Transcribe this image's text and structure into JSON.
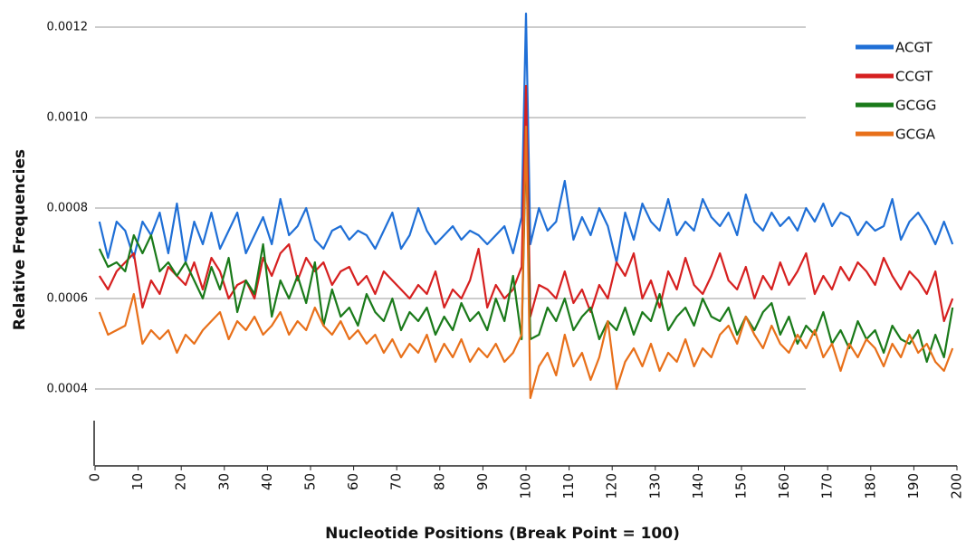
{
  "chart_data": {
    "type": "line",
    "x_label": "Nucleotide Positions (Break Point = 100)",
    "y_label": "Relative Frequencies",
    "xlim": [
      0,
      200
    ],
    "ylim": [
      0.00023,
      0.00124
    ],
    "xticks": [
      0,
      10,
      20,
      30,
      40,
      50,
      60,
      70,
      80,
      90,
      100,
      110,
      120,
      130,
      140,
      150,
      160,
      170,
      180,
      190,
      200
    ],
    "yticks": [
      0.0004,
      0.0006,
      0.0008,
      {
        "value": 0.001,
        "label": "0.0010"
      },
      0.0012
    ],
    "grid": true,
    "legend": "upper right",
    "x": [
      1,
      3,
      5,
      7,
      9,
      11,
      13,
      15,
      17,
      19,
      21,
      23,
      25,
      27,
      29,
      31,
      33,
      35,
      37,
      39,
      41,
      43,
      45,
      47,
      49,
      51,
      53,
      55,
      57,
      59,
      61,
      63,
      65,
      67,
      69,
      71,
      73,
      75,
      77,
      79,
      81,
      83,
      85,
      87,
      89,
      91,
      93,
      95,
      97,
      99,
      100,
      101,
      103,
      105,
      107,
      109,
      111,
      113,
      115,
      117,
      119,
      121,
      123,
      125,
      127,
      129,
      131,
      133,
      135,
      137,
      139,
      141,
      143,
      145,
      147,
      149,
      151,
      153,
      155,
      157,
      159,
      161,
      163,
      165,
      167,
      169,
      171,
      173,
      175,
      177,
      179,
      181,
      183,
      185,
      187,
      189,
      191,
      193,
      195,
      197,
      199
    ],
    "series": [
      {
        "name": "ACGT",
        "color": "#1f6fd6",
        "values": [
          0.00077,
          0.00069,
          0.00077,
          0.00075,
          0.00069,
          0.00077,
          0.00074,
          0.00079,
          0.0007,
          0.00081,
          0.00068,
          0.00077,
          0.00072,
          0.00079,
          0.00071,
          0.00075,
          0.00079,
          0.0007,
          0.00074,
          0.00078,
          0.00072,
          0.00082,
          0.00074,
          0.00076,
          0.0008,
          0.00073,
          0.00071,
          0.00075,
          0.00076,
          0.00073,
          0.00075,
          0.00074,
          0.00071,
          0.00075,
          0.00079,
          0.00071,
          0.00074,
          0.0008,
          0.00075,
          0.00072,
          0.00074,
          0.00076,
          0.00073,
          0.00075,
          0.00074,
          0.00072,
          0.00074,
          0.00076,
          0.0007,
          0.00078,
          0.00123,
          0.00072,
          0.0008,
          0.00075,
          0.00077,
          0.00086,
          0.00073,
          0.00078,
          0.00074,
          0.0008,
          0.00076,
          0.00068,
          0.00079,
          0.00073,
          0.00081,
          0.00077,
          0.00075,
          0.00082,
          0.00074,
          0.00077,
          0.00075,
          0.00082,
          0.00078,
          0.00076,
          0.00079,
          0.00074,
          0.00083,
          0.00077,
          0.00075,
          0.00079,
          0.00076,
          0.00078,
          0.00075,
          0.0008,
          0.00077,
          0.00081,
          0.00076,
          0.00079,
          0.00078,
          0.00074,
          0.00077,
          0.00075,
          0.00076,
          0.00082,
          0.00073,
          0.00077,
          0.00079,
          0.00076,
          0.00072,
          0.00077,
          0.00072
        ]
      },
      {
        "name": "CCGT",
        "color": "#d62020",
        "values": [
          0.00065,
          0.00062,
          0.00066,
          0.00068,
          0.0007,
          0.00058,
          0.00064,
          0.00061,
          0.00067,
          0.00065,
          0.00063,
          0.00068,
          0.00062,
          0.00069,
          0.00066,
          0.0006,
          0.00063,
          0.00064,
          0.0006,
          0.00069,
          0.00065,
          0.0007,
          0.00072,
          0.00064,
          0.00069,
          0.00066,
          0.00068,
          0.00063,
          0.00066,
          0.00067,
          0.00063,
          0.00065,
          0.00061,
          0.00066,
          0.00064,
          0.00062,
          0.0006,
          0.00063,
          0.00061,
          0.00066,
          0.00058,
          0.00062,
          0.0006,
          0.00064,
          0.00071,
          0.00058,
          0.00063,
          0.0006,
          0.00062,
          0.00067,
          0.00107,
          0.00056,
          0.00063,
          0.00062,
          0.0006,
          0.00066,
          0.00059,
          0.00062,
          0.00057,
          0.00063,
          0.0006,
          0.00068,
          0.00065,
          0.0007,
          0.0006,
          0.00064,
          0.00058,
          0.00066,
          0.00062,
          0.00069,
          0.00063,
          0.00061,
          0.00065,
          0.0007,
          0.00064,
          0.00062,
          0.00067,
          0.0006,
          0.00065,
          0.00062,
          0.00068,
          0.00063,
          0.00066,
          0.0007,
          0.00061,
          0.00065,
          0.00062,
          0.00067,
          0.00064,
          0.00068,
          0.00066,
          0.00063,
          0.00069,
          0.00065,
          0.00062,
          0.00066,
          0.00064,
          0.00061,
          0.00066,
          0.00055,
          0.0006
        ]
      },
      {
        "name": "GCGG",
        "color": "#1a7a1a",
        "values": [
          0.00071,
          0.00067,
          0.00068,
          0.00066,
          0.00074,
          0.0007,
          0.00074,
          0.00066,
          0.00068,
          0.00065,
          0.00068,
          0.00064,
          0.0006,
          0.00067,
          0.00062,
          0.00069,
          0.00057,
          0.00064,
          0.00061,
          0.00072,
          0.00056,
          0.00064,
          0.0006,
          0.00065,
          0.00059,
          0.00068,
          0.00054,
          0.00062,
          0.00056,
          0.00058,
          0.00054,
          0.00061,
          0.00057,
          0.00055,
          0.0006,
          0.00053,
          0.00057,
          0.00055,
          0.00058,
          0.00052,
          0.00056,
          0.00053,
          0.00059,
          0.00055,
          0.00057,
          0.00053,
          0.0006,
          0.00055,
          0.00065,
          0.00051,
          0.00095,
          0.00051,
          0.00052,
          0.00058,
          0.00055,
          0.0006,
          0.00053,
          0.00056,
          0.00058,
          0.00051,
          0.00055,
          0.00053,
          0.00058,
          0.00052,
          0.00057,
          0.00055,
          0.00061,
          0.00053,
          0.00056,
          0.00058,
          0.00054,
          0.0006,
          0.00056,
          0.00055,
          0.00058,
          0.00052,
          0.00056,
          0.00053,
          0.00057,
          0.00059,
          0.00052,
          0.00056,
          0.0005,
          0.00054,
          0.00052,
          0.00057,
          0.0005,
          0.00053,
          0.00049,
          0.00055,
          0.00051,
          0.00053,
          0.00048,
          0.00054,
          0.00051,
          0.0005,
          0.00053,
          0.00046,
          0.00052,
          0.00047,
          0.00058
        ]
      },
      {
        "name": "GCGA",
        "color": "#e8701a",
        "values": [
          0.00057,
          0.00052,
          0.00053,
          0.00054,
          0.00061,
          0.0005,
          0.00053,
          0.00051,
          0.00053,
          0.00048,
          0.00052,
          0.0005,
          0.00053,
          0.00055,
          0.00057,
          0.00051,
          0.00055,
          0.00053,
          0.00056,
          0.00052,
          0.00054,
          0.00057,
          0.00052,
          0.00055,
          0.00053,
          0.00058,
          0.00054,
          0.00052,
          0.00055,
          0.00051,
          0.00053,
          0.0005,
          0.00052,
          0.00048,
          0.00051,
          0.00047,
          0.0005,
          0.00048,
          0.00052,
          0.00046,
          0.0005,
          0.00047,
          0.00051,
          0.00046,
          0.00049,
          0.00047,
          0.0005,
          0.00046,
          0.00048,
          0.00052,
          0.00098,
          0.00038,
          0.00045,
          0.00048,
          0.00043,
          0.00052,
          0.00045,
          0.00048,
          0.00042,
          0.00047,
          0.00055,
          0.0004,
          0.00046,
          0.00049,
          0.00045,
          0.0005,
          0.00044,
          0.00048,
          0.00046,
          0.00051,
          0.00045,
          0.00049,
          0.00047,
          0.00052,
          0.00054,
          0.0005,
          0.00056,
          0.00052,
          0.00049,
          0.00054,
          0.0005,
          0.00048,
          0.00052,
          0.00049,
          0.00053,
          0.00047,
          0.0005,
          0.00044,
          0.0005,
          0.00047,
          0.00051,
          0.00049,
          0.00045,
          0.0005,
          0.00047,
          0.00052,
          0.00048,
          0.0005,
          0.00046,
          0.00044,
          0.00049
        ]
      }
    ]
  }
}
